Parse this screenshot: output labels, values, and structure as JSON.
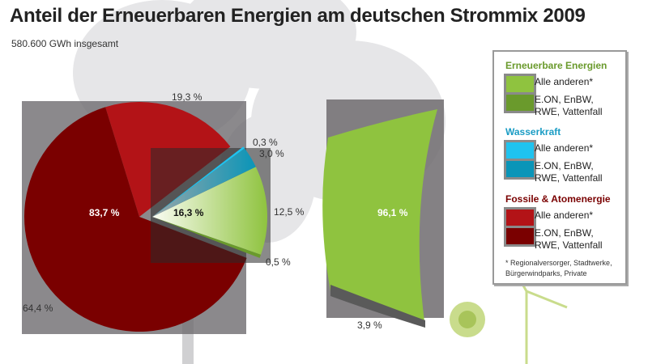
{
  "chart_data": {
    "type": "pie",
    "title": "Anteil der Erneuerbaren Energien am deutschen Strommix 2009",
    "subtitle": "580.600 GWh insgesamt",
    "pie": {
      "slices": [
        {
          "group": "Fossile & Atomenergie",
          "name": "E.ON, EnBW, RWE, Vattenfall",
          "value": 64.4,
          "label": "64,4 %",
          "color": "#7a0000"
        },
        {
          "group": "Fossile & Atomenergie",
          "name": "Alle anderen*",
          "value": 19.3,
          "label": "19,3 %",
          "color": "#b31317"
        },
        {
          "group": "Wasserkraft",
          "name": "Alle anderen*",
          "value": 0.3,
          "label": "0,3 %",
          "color": "#1fc3ef"
        },
        {
          "group": "Wasserkraft",
          "name": "E.ON, EnBW, RWE, Vattenfall",
          "value": 3.0,
          "label": "3,0 %",
          "color": "#0a95b8"
        },
        {
          "group": "Erneuerbare Energien",
          "name": "Alle anderen*",
          "value": 12.5,
          "label": "12,5 %",
          "color": "#8fc33f"
        },
        {
          "group": "Erneuerbare Energien",
          "name": "E.ON, EnBW, RWE, Vattenfall",
          "value": 0.5,
          "label": "0,5 %",
          "color": "#6a9a2c"
        }
      ],
      "total_fossil_label": "83,7 %",
      "total_renewable_label": "16,3 %"
    },
    "bar": {
      "segments": [
        {
          "name": "Alle anderen*",
          "value": 96.1,
          "label": "96,1 %",
          "color": "#8fc33f"
        },
        {
          "name": "E.ON, EnBW, RWE, Vattenfall",
          "value": 3.9,
          "label": "3,9 %",
          "color": "#5a5a5a"
        }
      ]
    }
  },
  "legend": {
    "groups": [
      {
        "title": "Erneuerbare Energien",
        "color": "#6a9a2c",
        "items": [
          {
            "label": "Alle anderen*",
            "color": "#8fc33f"
          },
          {
            "label": "E.ON, EnBW, RWE, Vattenfall",
            "color": "#6a9a2c"
          }
        ]
      },
      {
        "title": "Wasserkraft",
        "color": "#1a9cc4",
        "items": [
          {
            "label": "Alle anderen*",
            "color": "#1fc3ef"
          },
          {
            "label": "E.ON, EnBW, RWE, Vattenfall",
            "color": "#0a95b8"
          }
        ]
      },
      {
        "title": "Fossile & Atomenergie",
        "color": "#7a0000",
        "items": [
          {
            "label": "Alle anderen*",
            "color": "#b31317"
          },
          {
            "label": "E.ON, EnBW, RWE, Vattenfall",
            "color": "#7a0000"
          }
        ]
      }
    ],
    "note": "* Regionalversorger, Stadtwerke, Bürgerwindparks, Private"
  }
}
